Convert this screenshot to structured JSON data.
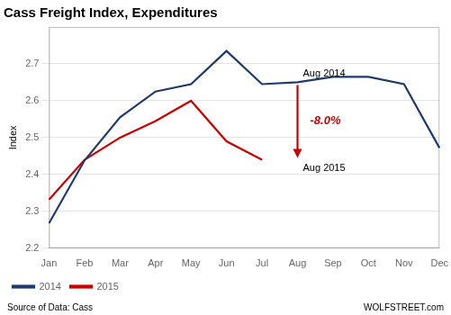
{
  "chart_data": {
    "type": "line",
    "title": "Cass Freight Index, Expenditures",
    "ylabel": "Index",
    "source": "Source of Data: Cass",
    "credit": "WOLFSTREET.com",
    "categories": [
      "Jan",
      "Feb",
      "Mar",
      "Apr",
      "May",
      "Jun",
      "Jul",
      "Aug",
      "Sep",
      "Oct",
      "Nov",
      "Dec"
    ],
    "series": [
      {
        "name": "2014",
        "color": "#1f3a6e",
        "values": [
          2.268,
          2.438,
          2.555,
          2.625,
          2.645,
          2.735,
          2.645,
          2.65,
          2.665,
          2.665,
          2.645,
          2.472
        ]
      },
      {
        "name": "2015",
        "color": "#cc0000",
        "values": [
          2.332,
          2.44,
          2.5,
          2.545,
          2.6,
          2.49,
          2.44,
          null,
          null,
          null,
          null,
          null
        ]
      }
    ],
    "ylim": [
      2.2,
      2.8
    ],
    "yticks": [
      2.2,
      2.3,
      2.4,
      2.5,
      2.6,
      2.7
    ],
    "grid": "y",
    "legend": "lower left",
    "annotations": [
      {
        "text": "Aug 2014",
        "x": "Aug",
        "y": 2.65
      },
      {
        "text": "Aug 2015",
        "x": "Aug",
        "y": 2.44
      },
      {
        "type": "arrow",
        "x": "Aug",
        "y_from": 2.65,
        "y_to": 2.44,
        "text": "-8.0%",
        "color": "#cc0000"
      }
    ]
  }
}
